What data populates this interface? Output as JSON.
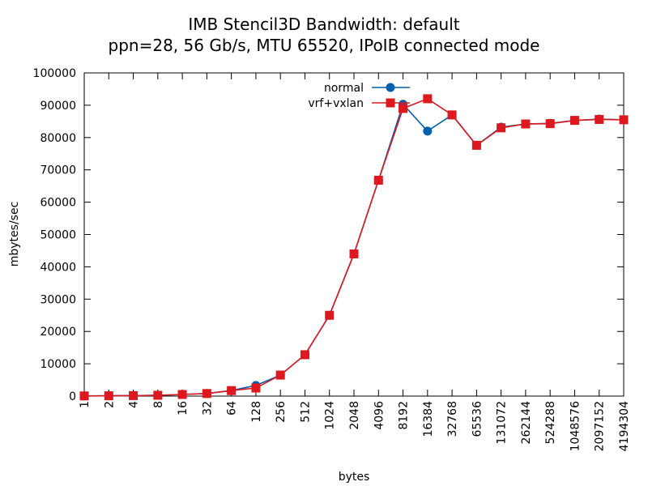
{
  "chart_data": {
    "type": "line",
    "title": "IMB Stencil3D Bandwidth: default",
    "subtitle": "ppn=28, 56 Gb/s, MTU 65520, IPoIB connected mode",
    "xlabel": "bytes",
    "ylabel": "mbytes/sec",
    "ylim": [
      0,
      100000
    ],
    "yticks": [
      0,
      10000,
      20000,
      30000,
      40000,
      50000,
      60000,
      70000,
      80000,
      90000,
      100000
    ],
    "categories": [
      "1",
      "2",
      "4",
      "8",
      "16",
      "32",
      "64",
      "128",
      "256",
      "512",
      "1024",
      "2048",
      "4096",
      "8192",
      "16384",
      "32768",
      "65536",
      "131072",
      "262144",
      "524288",
      "1048576",
      "2097152",
      "4194304"
    ],
    "grid": false,
    "legend_position": "top-center",
    "series": [
      {
        "name": "normal",
        "color": "#0060ad",
        "marker": "circle",
        "values": [
          50,
          100,
          150,
          250,
          500,
          800,
          1700,
          3300,
          6500,
          12800,
          25000,
          44000,
          66800,
          90300,
          82000,
          87000,
          77600,
          83200,
          84200,
          84400,
          85300,
          85700,
          85500
        ]
      },
      {
        "name": "vrf+vxlan",
        "color": "#dd181f",
        "marker": "square",
        "values": [
          50,
          100,
          150,
          250,
          500,
          800,
          1700,
          2500,
          6500,
          12800,
          25000,
          44000,
          66800,
          89000,
          92000,
          87000,
          77600,
          83000,
          84200,
          84300,
          85300,
          85600,
          85500
        ]
      }
    ]
  }
}
